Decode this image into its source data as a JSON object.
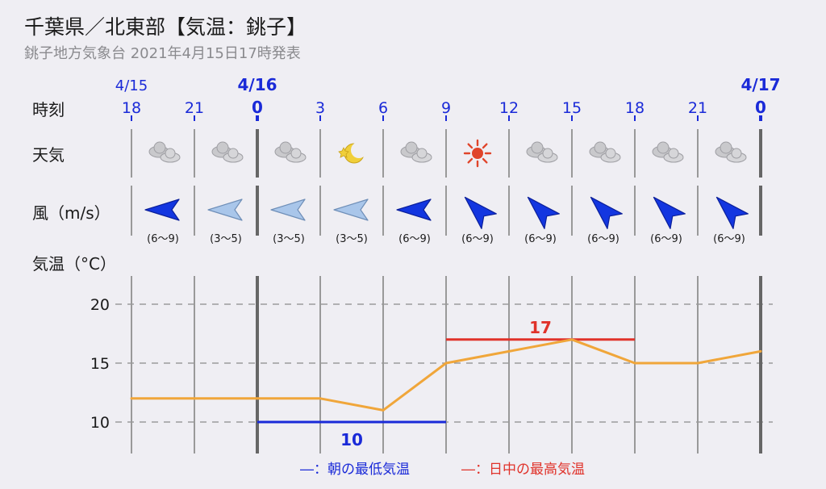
{
  "header": {
    "title": "千葉県／北東部【気温：銚子】",
    "subtitle": "銚子地方気象台 2021年4月15日17時発表"
  },
  "row_labels": {
    "time": "時刻",
    "weather": "天気",
    "wind": "風（m/s）",
    "temp": "気温（°C）"
  },
  "chart_data": {
    "type": "line",
    "dates": [
      {
        "label": "4/15",
        "slot": 0,
        "bold": false
      },
      {
        "label": "4/16",
        "slot": 2,
        "bold": true
      },
      {
        "label": "4/17",
        "slot": 10,
        "bold": true
      }
    ],
    "hours": [
      "18",
      "21",
      "0",
      "3",
      "6",
      "9",
      "12",
      "15",
      "18",
      "21",
      "0"
    ],
    "weather": [
      "cloudy-icon",
      "cloudy-icon",
      "cloudy-icon",
      "moon-clear-icon",
      "cloudy-icon",
      "sunny-icon",
      "cloudy-icon",
      "cloudy-icon",
      "cloudy-icon",
      "cloudy-icon"
    ],
    "wind": [
      {
        "range": "(6〜9)",
        "dir": "west",
        "strong": true
      },
      {
        "range": "(3〜5)",
        "dir": "west",
        "strong": false
      },
      {
        "range": "(3〜5)",
        "dir": "west",
        "strong": false
      },
      {
        "range": "(3〜5)",
        "dir": "west",
        "strong": false
      },
      {
        "range": "(6〜9)",
        "dir": "west",
        "strong": true
      },
      {
        "range": "(6〜9)",
        "dir": "northwest",
        "strong": true
      },
      {
        "range": "(6〜9)",
        "dir": "northwest",
        "strong": true
      },
      {
        "range": "(6〜9)",
        "dir": "northwest",
        "strong": true
      },
      {
        "range": "(6〜9)",
        "dir": "northwest",
        "strong": true
      },
      {
        "range": "(6〜9)",
        "dir": "northwest",
        "strong": true
      }
    ],
    "temperature": [
      12,
      12,
      12,
      12,
      11,
      15,
      16,
      17,
      15,
      15,
      16
    ],
    "yticks": [
      10,
      15,
      20
    ],
    "ylim": [
      7.5,
      22.5
    ],
    "min_temp": {
      "value": 10,
      "label": "10",
      "from_slot": 2,
      "to_slot": 5
    },
    "max_temp": {
      "value": 17,
      "label": "17",
      "from_slot": 5,
      "to_slot": 8
    },
    "legend": {
      "min": "―：朝の最低気温",
      "max": "―：日中の最高気温"
    },
    "colors": {
      "line": "#f0a63a",
      "min": "#1a2ad8",
      "max": "#e0322a",
      "date": "#1a2ad8"
    }
  }
}
